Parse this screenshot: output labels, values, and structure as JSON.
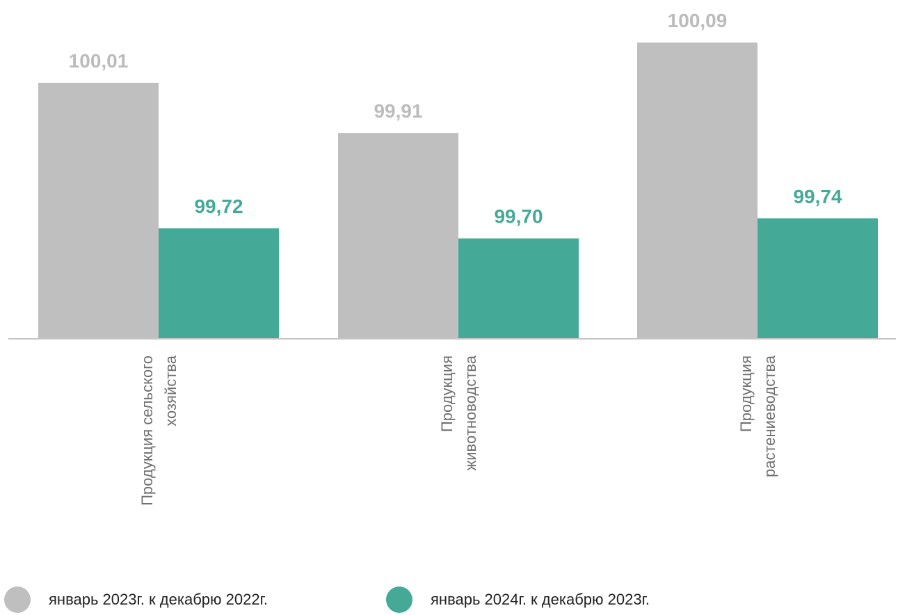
{
  "chart_data": {
    "type": "bar",
    "categories": [
      [
        "Продукция сельского",
        "хозяйства"
      ],
      [
        "Продукция",
        "животноводства"
      ],
      [
        "Продукция",
        "растениеводства"
      ]
    ],
    "series": [
      {
        "name": "январь 2023г. к декабрю 2022г.",
        "values": [
          100.01,
          99.91,
          100.09
        ],
        "labels": [
          "100,01",
          "99,91",
          "100,09"
        ],
        "color": "#bfbfbf"
      },
      {
        "name": "январь 2024г. к декабрю 2023г.",
        "values": [
          99.72,
          99.7,
          99.74
        ],
        "labels": [
          "99,72",
          "99,70",
          "99,74"
        ],
        "color": "#45a998"
      }
    ],
    "ylim": [
      99.5,
      100.1
    ],
    "legend_position": "bottom",
    "grid": false
  }
}
